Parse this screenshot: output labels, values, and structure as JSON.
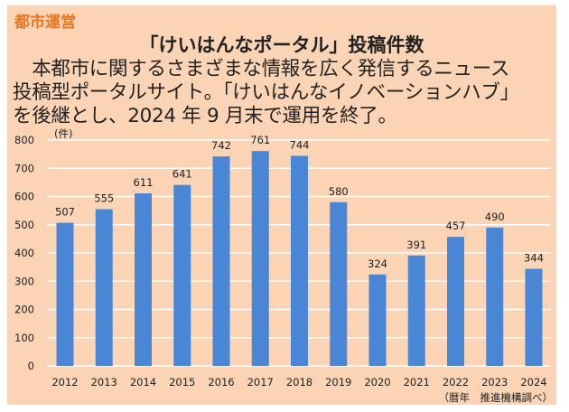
{
  "category_label": "都市運営",
  "headline": "「けいはんなポータル」投稿件数",
  "body_lines": [
    "　本都市に関するさまざまな情報を広く発信するニュース",
    "投稿型ポータルサイト。「けいはんなイノベーションハブ」",
    "を後継とし、2024 年 9 月末で運用を終了。"
  ],
  "colors": {
    "bar": "#4a86d6",
    "background": "#fad4b4",
    "category": "#e8761e"
  },
  "chart_data": {
    "type": "bar",
    "title": "「けいはんなポータル」投稿件数",
    "ylabel": "(件)",
    "xlabel": "",
    "categories": [
      "2012",
      "2013",
      "2014",
      "2015",
      "2016",
      "2017",
      "2018",
      "2019",
      "2020",
      "2021",
      "2022",
      "2023",
      "2024"
    ],
    "values": [
      507,
      555,
      611,
      641,
      742,
      761,
      744,
      580,
      324,
      391,
      457,
      490,
      344
    ],
    "ylim": [
      0,
      800
    ],
    "yticks": [
      0,
      100,
      200,
      300,
      400,
      500,
      600,
      700,
      800
    ],
    "grid": true,
    "note": "（暦年　推進機構調べ）"
  }
}
